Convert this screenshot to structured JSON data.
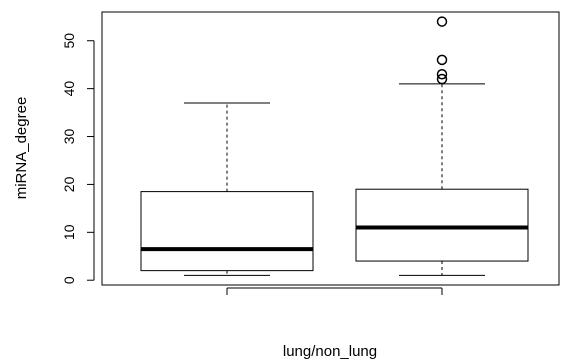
{
  "chart_data": {
    "type": "boxplot",
    "title": "",
    "xlabel": "lung/non_lung",
    "ylabel": "miRNA_degree",
    "ylim": [
      -1,
      56
    ],
    "yticks": [
      0,
      10,
      20,
      30,
      40,
      50
    ],
    "grid": false,
    "groups": [
      {
        "whisker_low": 1,
        "q1": 2,
        "median": 6.5,
        "q3": 18.5,
        "whisker_high": 37,
        "outliers": []
      },
      {
        "whisker_low": 1,
        "q1": 4,
        "median": 11,
        "q3": 19,
        "whisker_high": 41,
        "outliers": [
          42,
          43,
          46,
          54
        ]
      }
    ]
  }
}
